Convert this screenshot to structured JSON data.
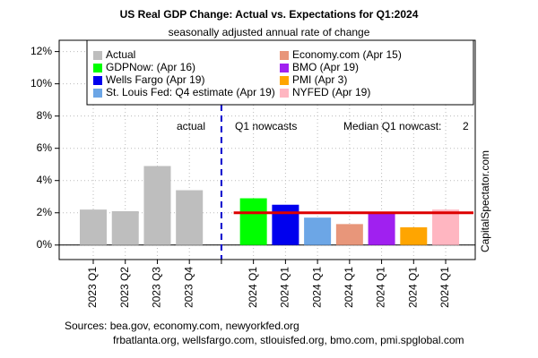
{
  "chart_data": {
    "type": "bar",
    "title": "US Real GDP Change: Actual vs. Expectations for Q1:2024",
    "subtitle": "seasonally adjusted annual rate of change",
    "categories": [
      "2023 Q1",
      "2023 Q2",
      "2023 Q3",
      "2023 Q4",
      null,
      "2024 Q1",
      "2024 Q1",
      "2024 Q1",
      "2024 Q1",
      "2024 Q1",
      "2024 Q1",
      "2024 Q1"
    ],
    "series": [
      {
        "name": "Actual",
        "color": "#bebebe",
        "values": [
          2.2,
          2.1,
          4.9,
          3.4,
          null,
          null,
          null,
          null,
          null,
          null,
          null,
          null
        ]
      },
      {
        "name": "GDPNow: (Apr 16)",
        "color": "#00ff00",
        "values": [
          null,
          null,
          null,
          null,
          null,
          2.9,
          null,
          null,
          null,
          null,
          null,
          null
        ]
      },
      {
        "name": "Wells Fargo (Apr 19)",
        "color": "#0000ee",
        "values": [
          null,
          null,
          null,
          null,
          null,
          null,
          2.5,
          null,
          null,
          null,
          null,
          null
        ]
      },
      {
        "name": "St. Louis Fed: Q4 estimate (Apr 19)",
        "color": "#6ca6e6",
        "values": [
          null,
          null,
          null,
          null,
          null,
          null,
          null,
          1.7,
          null,
          null,
          null,
          null
        ]
      },
      {
        "name": "Economy.com (Apr 15)",
        "color": "#e8967a",
        "values": [
          null,
          null,
          null,
          null,
          null,
          null,
          null,
          null,
          1.3,
          null,
          null,
          null
        ]
      },
      {
        "name": "BMO (Apr 19)",
        "color": "#a020f0",
        "values": [
          null,
          null,
          null,
          null,
          null,
          null,
          null,
          null,
          null,
          2.0,
          null,
          null
        ]
      },
      {
        "name": "PMI (Apr 3)",
        "color": "#ffa500",
        "values": [
          null,
          null,
          null,
          null,
          null,
          null,
          null,
          null,
          null,
          null,
          1.1,
          null
        ]
      },
      {
        "name": "NYFED (Apr 19)",
        "color": "#ffb6c1",
        "values": [
          null,
          null,
          null,
          null,
          null,
          null,
          null,
          null,
          null,
          null,
          null,
          2.2
        ]
      }
    ],
    "ylim": [
      -0.9,
      12.7
    ],
    "yticks": [
      {
        "value": 0,
        "label": "0%"
      },
      {
        "value": 2,
        "label": "2%"
      },
      {
        "value": 4,
        "label": "4%"
      },
      {
        "value": 6,
        "label": "6%"
      },
      {
        "value": 8,
        "label": "8%"
      },
      {
        "value": 10,
        "label": "10%"
      },
      {
        "value": 12,
        "label": "12%"
      }
    ],
    "grid": true,
    "legend": "top",
    "annotations": [
      "actual",
      "Q1 nowcasts"
    ],
    "median": {
      "label": "Median Q1 nowcast:",
      "value": 2,
      "color": "#dd0000"
    },
    "side_text": "CapitalSpectator.com",
    "sources": [
      "Sources: bea.gov, economy.com, newyorkfed.org",
      "frbatlanta.org, wellsfargo.com, stlouisfed.org, bmo.com, pmi.spglobal.com"
    ]
  }
}
